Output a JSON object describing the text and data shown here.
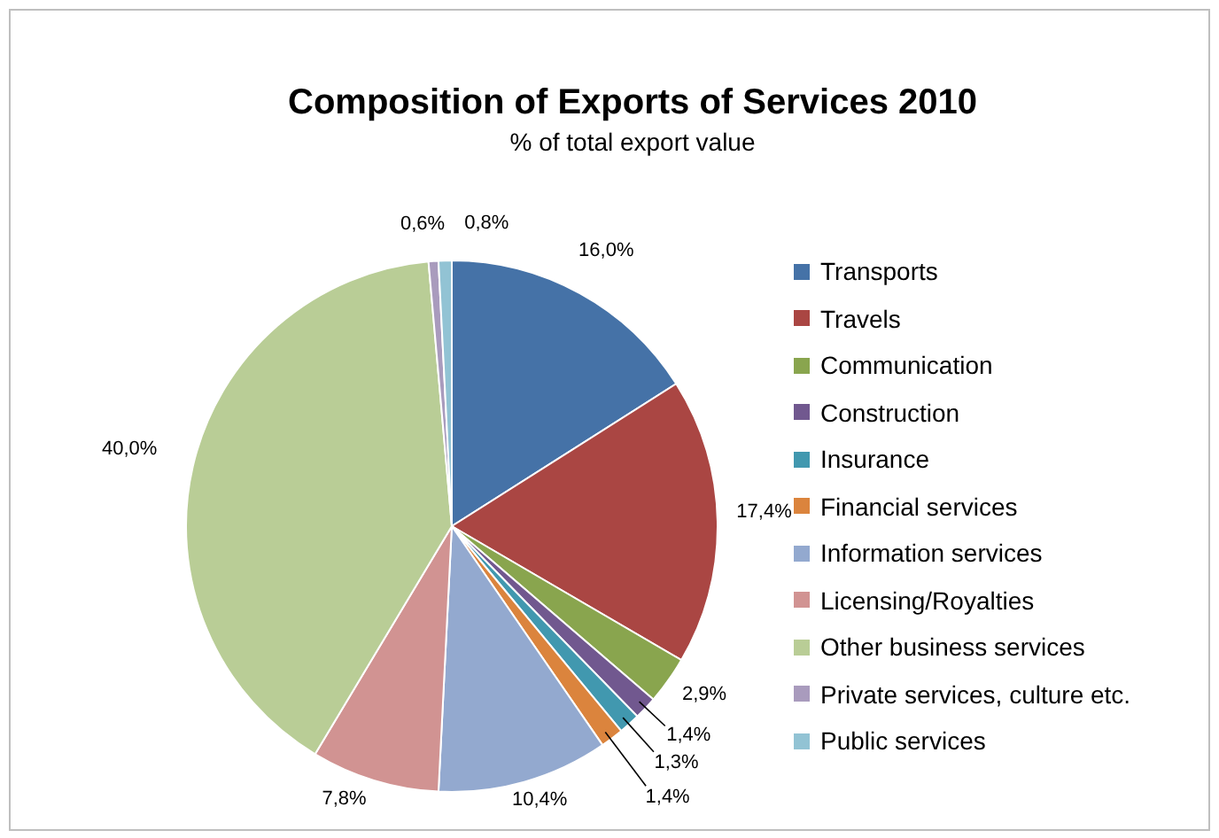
{
  "chart_data": {
    "type": "pie",
    "title": "Composition of Exports of Services 2010",
    "subtitle": "% of total export value",
    "categories": [
      "Transports",
      "Travels",
      "Communication",
      "Construction",
      "Insurance",
      "Financial services",
      "Information services",
      "Licensing/Royalties",
      "Other business services",
      "Private services, culture etc.",
      "Public services"
    ],
    "values": [
      16.0,
      17.4,
      2.9,
      1.4,
      1.3,
      1.4,
      10.4,
      7.8,
      40.0,
      0.6,
      0.8
    ],
    "value_labels": [
      "16,0%",
      "17,4%",
      "2,9%",
      "1,4%",
      "1,3%",
      "1,4%",
      "10,4%",
      "7,8%",
      "40,0%",
      "0,6%",
      "0,8%"
    ],
    "colors": [
      "#4572a7",
      "#aa4643",
      "#89a54e",
      "#71588f",
      "#4198af",
      "#db843d",
      "#93a9cf",
      "#d19392",
      "#b9cd96",
      "#a99bbd",
      "#92c3d4"
    ],
    "legend": "right"
  }
}
